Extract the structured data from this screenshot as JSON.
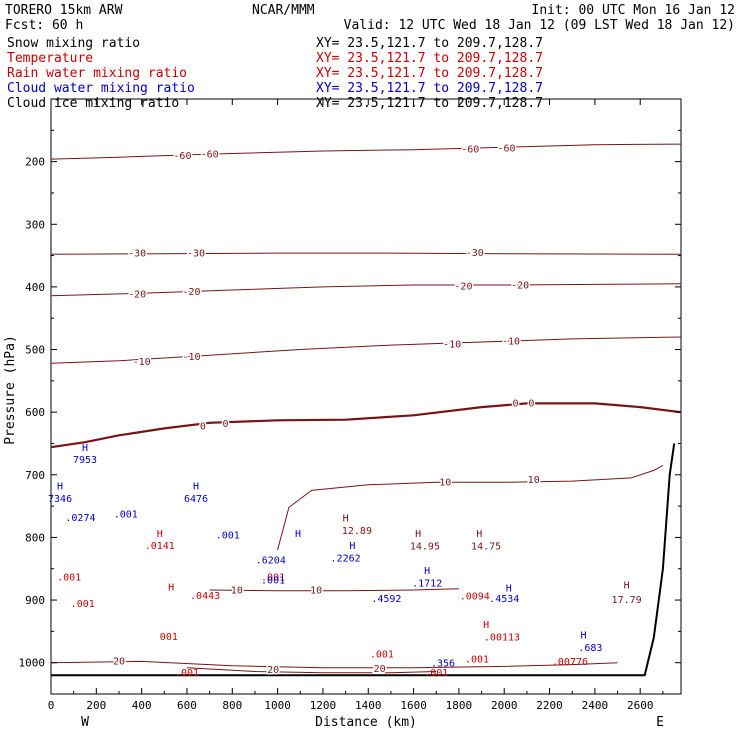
{
  "header": {
    "model": "TORERO  15km ARW",
    "center": "NCAR/MMM",
    "init": "Init: 00 UTC Mon 16 Jan 12",
    "fcst": "Fcst:   60 h",
    "valid": "Valid: 12 UTC Wed 18 Jan 12 (09 LST Wed 18 Jan 12)"
  },
  "legend": [
    {
      "name": "Snow mixing ratio",
      "xy": "XY=  23.5,121.7 to 209.7,128.7",
      "color": "#000000"
    },
    {
      "name": "Temperature",
      "xy": "XY=  23.5,121.7 to 209.7,128.7",
      "color": "#cc0000"
    },
    {
      "name": "Rain water mixing ratio",
      "xy": "XY=  23.5,121.7 to 209.7,128.7",
      "color": "#cc0000"
    },
    {
      "name": "Cloud water mixing ratio",
      "xy": "XY=  23.5,121.7 to 209.7,128.7",
      "color": "#0000cc"
    },
    {
      "name": "Cloud ice mixing ratio",
      "xy": "XY=  23.5,121.7 to 209.7,128.7",
      "color": "#000000"
    }
  ],
  "colors": {
    "temperature": "#7a1414",
    "freezing": "#7a1414",
    "rain": "#cc0000",
    "cloud_water": "#0000cc",
    "terrain": "#000000"
  },
  "chart_data": {
    "type": "line",
    "xlabel": "Distance (km)",
    "ylabel": "Pressure (hPa)",
    "xlim": [
      0,
      2780
    ],
    "ylim": [
      1050,
      100
    ],
    "x_ticks": [
      0,
      200,
      400,
      600,
      800,
      1000,
      1200,
      1400,
      1600,
      1800,
      2000,
      2200,
      2400,
      2600
    ],
    "y_ticks": [
      200,
      300,
      400,
      500,
      600,
      700,
      800,
      900,
      1000
    ],
    "x_endpoints": {
      "left": "W",
      "right": "E"
    },
    "temperature_contours": [
      {
        "level": -60,
        "label": "-60",
        "points": [
          [
            0,
            196
          ],
          [
            300,
            193
          ],
          [
            700,
            188
          ],
          [
            1200,
            183
          ],
          [
            1600,
            181
          ],
          [
            2000,
            177
          ],
          [
            2400,
            173
          ],
          [
            2780,
            172
          ]
        ]
      },
      {
        "level": -30,
        "label": "-30",
        "points": [
          [
            0,
            348
          ],
          [
            500,
            347
          ],
          [
            1000,
            346
          ],
          [
            1500,
            346
          ],
          [
            2000,
            347
          ],
          [
            2780,
            348
          ]
        ]
      },
      {
        "level": -20,
        "label": "-20",
        "points": [
          [
            0,
            414
          ],
          [
            400,
            410
          ],
          [
            800,
            405
          ],
          [
            1200,
            400
          ],
          [
            1600,
            397
          ],
          [
            2000,
            397
          ],
          [
            2400,
            396
          ],
          [
            2780,
            395
          ]
        ]
      },
      {
        "level": -10,
        "label": "-10",
        "points": [
          [
            0,
            522
          ],
          [
            300,
            518
          ],
          [
            700,
            509
          ],
          [
            1100,
            500
          ],
          [
            1500,
            493
          ],
          [
            1900,
            488
          ],
          [
            2300,
            483
          ],
          [
            2780,
            480
          ]
        ]
      },
      {
        "level": 0,
        "label": "0",
        "points": [
          [
            0,
            656
          ],
          [
            150,
            648
          ],
          [
            300,
            637
          ],
          [
            500,
            626
          ],
          [
            700,
            617
          ],
          [
            1000,
            613
          ],
          [
            1300,
            612
          ],
          [
            1600,
            605
          ],
          [
            1900,
            592
          ],
          [
            2100,
            586
          ],
          [
            2400,
            586
          ],
          [
            2600,
            592
          ],
          [
            2780,
            600
          ]
        ]
      },
      {
        "level": 10,
        "label": "10",
        "points": [
          [
            1000,
            820
          ],
          [
            1050,
            752
          ],
          [
            1150,
            725
          ],
          [
            1400,
            716
          ],
          [
            1700,
            712
          ],
          [
            2000,
            712
          ],
          [
            2300,
            710
          ],
          [
            2560,
            705
          ],
          [
            2660,
            693
          ],
          [
            2700,
            685
          ]
        ]
      },
      {
        "level": 10,
        "label": "10",
        "points": [
          [
            700,
            884
          ],
          [
            1000,
            885
          ],
          [
            1300,
            885
          ],
          [
            1600,
            884
          ],
          [
            1800,
            882
          ]
        ]
      },
      {
        "level": 20,
        "label": "20",
        "points": [
          [
            0,
            1000
          ],
          [
            400,
            998
          ],
          [
            800,
            1005
          ],
          [
            1200,
            1008
          ],
          [
            1600,
            1008
          ],
          [
            2000,
            1006
          ],
          [
            2300,
            1003
          ],
          [
            2500,
            1000
          ]
        ]
      },
      {
        "level": 20,
        "label": "20",
        "points": [
          [
            600,
            1008
          ],
          [
            900,
            1014
          ],
          [
            1200,
            1016
          ],
          [
            1500,
            1016
          ],
          [
            1700,
            1014
          ]
        ]
      }
    ],
    "temperature_labels": [
      {
        "text": "-60",
        "x": 580,
        "p": 191
      },
      {
        "text": "-60",
        "x": 700,
        "p": 189
      },
      {
        "text": "-60",
        "x": 1850,
        "p": 181
      },
      {
        "text": "-60",
        "x": 2010,
        "p": 179
      },
      {
        "text": "-30",
        "x": 380,
        "p": 347
      },
      {
        "text": "-30",
        "x": 640,
        "p": 347
      },
      {
        "text": "-30",
        "x": 1870,
        "p": 346
      },
      {
        "text": "-20",
        "x": 380,
        "p": 412
      },
      {
        "text": "-20",
        "x": 620,
        "p": 408
      },
      {
        "text": "-20",
        "x": 1820,
        "p": 399
      },
      {
        "text": "-20",
        "x": 2070,
        "p": 398
      },
      {
        "text": "-10",
        "x": 400,
        "p": 520
      },
      {
        "text": "-10",
        "x": 620,
        "p": 512
      },
      {
        "text": "-10",
        "x": 1770,
        "p": 492
      },
      {
        "text": "-10",
        "x": 2030,
        "p": 487
      },
      {
        "text": "0",
        "x": 670,
        "p": 623
      },
      {
        "text": "0",
        "x": 770,
        "p": 619
      },
      {
        "text": "0",
        "x": 2050,
        "p": 586
      },
      {
        "text": "0",
        "x": 2120,
        "p": 586
      },
      {
        "text": "10",
        "x": 1740,
        "p": 712
      },
      {
        "text": "10",
        "x": 2130,
        "p": 708
      },
      {
        "text": "10",
        "x": 820,
        "p": 885
      },
      {
        "text": "10",
        "x": 1170,
        "p": 885
      },
      {
        "text": "20",
        "x": 300,
        "p": 998
      },
      {
        "text": "20",
        "x": 980,
        "p": 1012
      },
      {
        "text": "20",
        "x": 1450,
        "p": 1010
      }
    ],
    "extrema_labels": [
      {
        "text": "H",
        "x": 1300,
        "p": 768,
        "series": "temp"
      },
      {
        "text": "12.89",
        "x": 1350,
        "p": 788,
        "series": "temp"
      },
      {
        "text": "H",
        "x": 1620,
        "p": 793,
        "series": "temp"
      },
      {
        "text": "14.95",
        "x": 1650,
        "p": 813,
        "series": "temp"
      },
      {
        "text": "H",
        "x": 1890,
        "p": 793,
        "series": "temp"
      },
      {
        "text": "14.75",
        "x": 1920,
        "p": 813,
        "series": "temp"
      },
      {
        "text": "H",
        "x": 2540,
        "p": 875,
        "series": "temp"
      },
      {
        "text": "17.79",
        "x": 2540,
        "p": 898,
        "series": "temp"
      },
      {
        "text": "H",
        "x": 480,
        "p": 793,
        "series": "rain"
      },
      {
        "text": ".0141",
        "x": 480,
        "p": 812,
        "series": "rain"
      },
      {
        "text": "H",
        "x": 530,
        "p": 878,
        "series": "rain"
      },
      {
        "text": ".001",
        "x": 80,
        "p": 862,
        "series": "rain"
      },
      {
        "text": ".001",
        "x": 140,
        "p": 905,
        "series": "rain"
      },
      {
        "text": ".0443",
        "x": 680,
        "p": 892,
        "series": "rain"
      },
      {
        "text": ".001",
        "x": 980,
        "p": 862,
        "series": "rain"
      },
      {
        "text": "001",
        "x": 520,
        "p": 957,
        "series": "rain"
      },
      {
        "text": ".001",
        "x": 1460,
        "p": 985,
        "series": "rain"
      },
      {
        "text": ".001",
        "x": 1700,
        "p": 1015,
        "series": "rain"
      },
      {
        "text": ".001",
        "x": 1880,
        "p": 993,
        "series": "rain"
      },
      {
        "text": ".0094",
        "x": 1870,
        "p": 893,
        "series": "rain"
      },
      {
        "text": "H",
        "x": 1920,
        "p": 938,
        "series": "rain"
      },
      {
        "text": ".00113",
        "x": 1990,
        "p": 958,
        "series": "rain"
      },
      {
        "text": ".00776",
        "x": 2290,
        "p": 997,
        "series": "rain"
      },
      {
        "text": ".001",
        "x": 600,
        "p": 1015,
        "series": "rain"
      },
      {
        "text": "H",
        "x": 150,
        "p": 656,
        "series": "cloud"
      },
      {
        "text": "7953",
        "x": 150,
        "p": 675,
        "series": "cloud"
      },
      {
        "text": "H",
        "x": 40,
        "p": 717,
        "series": "cloud"
      },
      {
        "text": "7346",
        "x": 40,
        "p": 737,
        "series": "cloud"
      },
      {
        "text": ".0274",
        "x": 130,
        "p": 767,
        "series": "cloud"
      },
      {
        "text": ".001",
        "x": 330,
        "p": 762,
        "series": "cloud"
      },
      {
        "text": "H",
        "x": 640,
        "p": 717,
        "series": "cloud"
      },
      {
        "text": "6476",
        "x": 640,
        "p": 737,
        "series": "cloud"
      },
      {
        "text": ".001",
        "x": 780,
        "p": 795,
        "series": "cloud"
      },
      {
        "text": ".6204",
        "x": 970,
        "p": 835,
        "series": "cloud"
      },
      {
        "text": ".001",
        "x": 980,
        "p": 867,
        "series": "cloud"
      },
      {
        "text": "H",
        "x": 1090,
        "p": 793,
        "series": "cloud"
      },
      {
        "text": "H",
        "x": 1330,
        "p": 812,
        "series": "cloud"
      },
      {
        "text": ".2262",
        "x": 1300,
        "p": 832,
        "series": "cloud"
      },
      {
        "text": ".4592",
        "x": 1480,
        "p": 897,
        "series": "cloud"
      },
      {
        "text": "H",
        "x": 1660,
        "p": 852,
        "series": "cloud"
      },
      {
        "text": ".1712",
        "x": 1660,
        "p": 872,
        "series": "cloud"
      },
      {
        "text": "H",
        "x": 2020,
        "p": 880,
        "series": "cloud"
      },
      {
        "text": ".4534",
        "x": 2000,
        "p": 897,
        "series": "cloud"
      },
      {
        "text": "H",
        "x": 2350,
        "p": 955,
        "series": "cloud"
      },
      {
        "text": ".683",
        "x": 2380,
        "p": 975,
        "series": "cloud"
      },
      {
        "text": ".356",
        "x": 1730,
        "p": 1000,
        "series": "cloud"
      }
    ],
    "terrain": [
      [
        0,
        1020
      ],
      [
        2620,
        1020
      ],
      [
        2660,
        960
      ],
      [
        2700,
        850
      ],
      [
        2730,
        700
      ],
      [
        2750,
        650
      ]
    ]
  }
}
